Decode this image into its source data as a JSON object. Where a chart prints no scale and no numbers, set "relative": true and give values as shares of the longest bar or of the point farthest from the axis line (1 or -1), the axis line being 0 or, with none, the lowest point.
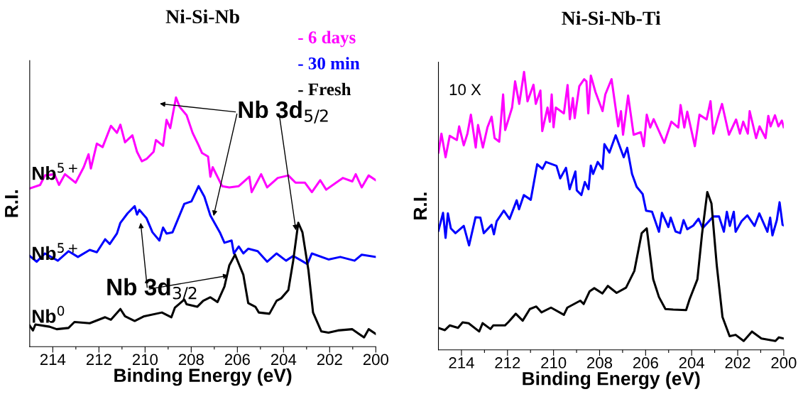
{
  "chart_data": [
    {
      "type": "line",
      "title": "Ni-Si-Nb",
      "xlabel": "Binding Energy (eV)",
      "ylabel": "R.I.",
      "relative": true,
      "xlim": [
        215,
        200
      ],
      "xticks": [
        214,
        {
          "value": 213,
          "label": null
        },
        212,
        {
          "value": 211,
          "label": null
        },
        210,
        {
          "value": 209,
          "label": null
        },
        208,
        {
          "value": 207,
          "label": null
        },
        206,
        {
          "value": 205,
          "label": null
        },
        204,
        {
          "value": 203,
          "label": null
        },
        202,
        {
          "value": 201,
          "label": null
        },
        200
      ],
      "tick_labels": "x",
      "legend": "top right",
      "grid": false,
      "marker": "none",
      "line_style": "solid",
      "annotations": [
        "Nb$^{5+}$",
        "Nb$^{5+}$",
        "Nb$^{0}$",
        "Nb 3d$_{5/2}$",
        "Nb 3d$_{3/2}$"
      ],
      "series": [
        {
          "name": "- 6 days",
          "color": "#ff00ff",
          "x": [
            215,
            214.55,
            214.34,
            213.93,
            213.73,
            213.47,
            213.01,
            212.66,
            212.45,
            212.35,
            212.09,
            211.84,
            211.48,
            211.22,
            211.07,
            210.87,
            210.55,
            210.35,
            210.14,
            209.94,
            209.63,
            209.53,
            209.22,
            209.07,
            208.91,
            208.66,
            208.5,
            208.2,
            207.94,
            207.69,
            207.53,
            207.27,
            207.17,
            207.07,
            206.66,
            206.35,
            205.94,
            205.48,
            205.38,
            204.97,
            204.71,
            204.25,
            203.79,
            203.48,
            203.07,
            202.77,
            202.41,
            202.15,
            201.43,
            201.02,
            200.87,
            200.61,
            200.31,
            200
          ],
          "values": [
            0.635,
            0.649,
            0.687,
            0.692,
            0.649,
            0.692,
            0.658,
            0.72,
            0.772,
            0.715,
            0.815,
            0.801,
            0.886,
            0.858,
            0.891,
            0.82,
            0.848,
            0.782,
            0.744,
            0.753,
            0.782,
            0.829,
            0.806,
            0.91,
            0.877,
            1.0,
            0.962,
            0.929,
            0.858,
            0.81,
            0.777,
            0.763,
            0.682,
            0.72,
            0.644,
            0.639,
            0.644,
            0.682,
            0.62,
            0.692,
            0.639,
            0.677,
            0.687,
            0.658,
            0.658,
            0.62,
            0.668,
            0.63,
            0.677,
            0.663,
            0.692,
            0.639,
            0.687,
            0.668
          ]
        },
        {
          "name": "- 30 min",
          "color": "#0000ff",
          "x": [
            215,
            214.7,
            214.34,
            213.78,
            213.32,
            212.91,
            212.4,
            212.09,
            211.73,
            211.53,
            211.22,
            211.07,
            210.76,
            210.45,
            210.35,
            210.25,
            209.94,
            209.68,
            209.38,
            209.22,
            209.07,
            208.81,
            208.3,
            207.99,
            207.68,
            207.43,
            207.17,
            206.76,
            206.56,
            206.25,
            206.15,
            205.94,
            205.74,
            205.53,
            205.12,
            204.71,
            204.3,
            203.89,
            203.58,
            203.22,
            202.97,
            202.77,
            202.05,
            201.54,
            200.92,
            200.61,
            200
          ],
          "values": [
            0.364,
            0.341,
            0.374,
            0.345,
            0.383,
            0.36,
            0.388,
            0.379,
            0.431,
            0.412,
            0.454,
            0.497,
            0.535,
            0.564,
            0.53,
            0.549,
            0.516,
            0.459,
            0.426,
            0.478,
            0.454,
            0.459,
            0.573,
            0.583,
            0.644,
            0.602,
            0.526,
            0.459,
            0.417,
            0.426,
            0.374,
            0.402,
            0.374,
            0.393,
            0.383,
            0.341,
            0.374,
            0.345,
            0.364,
            0.345,
            0.331,
            0.374,
            0.35,
            0.36,
            0.345,
            0.369,
            0.36
          ]
        },
        {
          "name": "- Fresh",
          "color": "#000000",
          "x": [
            215,
            214.86,
            214.75,
            214.14,
            213.83,
            213.32,
            213.06,
            212.4,
            211.73,
            211.48,
            211.07,
            210.87,
            210.45,
            210.04,
            209.27,
            208.86,
            208.71,
            208.3,
            208.2,
            207.74,
            207.48,
            207.17,
            206.86,
            206.56,
            206.35,
            206.1,
            205.74,
            205.53,
            205.22,
            205.07,
            204.61,
            204.3,
            204.1,
            203.79,
            203.58,
            203.36,
            203.18,
            202.92,
            202.72,
            202.36,
            202.05,
            201.64,
            201.02,
            200.51,
            200.31,
            200
          ],
          "values": [
            0.084,
            0.065,
            0.089,
            0.08,
            0.07,
            0.075,
            0.099,
            0.094,
            0.118,
            0.108,
            0.151,
            0.122,
            0.103,
            0.122,
            0.137,
            0.118,
            0.156,
            0.189,
            0.17,
            0.16,
            0.184,
            0.198,
            0.179,
            0.241,
            0.326,
            0.369,
            0.288,
            0.175,
            0.16,
            0.137,
            0.132,
            0.184,
            0.194,
            0.227,
            0.345,
            0.497,
            0.459,
            0.307,
            0.137,
            0.061,
            0.056,
            0.065,
            0.07,
            0.037,
            0.07,
            0.051
          ]
        }
      ]
    },
    {
      "type": "line",
      "title": "Ni-Si-Nb-Ti",
      "xlabel": "Binding Energy (eV)",
      "ylabel": "R.I.",
      "relative": true,
      "xlim": [
        215,
        200
      ],
      "xticks": [
        214,
        {
          "value": 213,
          "label": null
        },
        212,
        {
          "value": 211,
          "label": null
        },
        210,
        {
          "value": 209,
          "label": null
        },
        208,
        {
          "value": 207,
          "label": null
        },
        206,
        {
          "value": 205,
          "label": null
        },
        204,
        {
          "value": 203,
          "label": null
        },
        202,
        {
          "value": 201,
          "label": null
        },
        200
      ],
      "tick_labels": "x",
      "grid": false,
      "marker": "none",
      "line_style": "solid",
      "annotations": [
        "10 X"
      ],
      "series": [
        {
          "color": "#ff00ff",
          "x": [
            215,
            214.87,
            214.69,
            214.51,
            214.2,
            214.1,
            213.9,
            213.74,
            213.59,
            213.38,
            213.28,
            213.07,
            212.87,
            212.69,
            212.56,
            212.36,
            212.19,
            212.1,
            211.8,
            211.67,
            211.49,
            211.28,
            211.13,
            210.87,
            210.77,
            210.57,
            210.49,
            210.26,
            210.16,
            210.08,
            210.0,
            209.9,
            209.55,
            209.39,
            209.29,
            209.16,
            209.08,
            208.88,
            208.67,
            208.57,
            208.49,
            208.38,
            208.18,
            207.87,
            207.75,
            207.48,
            207.19,
            207.07,
            206.98,
            206.76,
            206.52,
            206.21,
            206.08,
            205.95,
            205.8,
            205.65,
            205.19,
            204.88,
            204.58,
            204.48,
            204.32,
            204.19,
            203.86,
            203.66,
            203.35,
            203.18,
            203.06,
            202.84,
            202.68,
            202.38,
            202.07,
            201.9,
            201.76,
            201.56,
            201.48,
            201.2,
            201.05,
            200.79,
            200.67,
            200.57,
            200.38,
            200.23,
            200.08,
            200
          ],
          "values": [
            0.71,
            0.778,
            0.693,
            0.77,
            0.755,
            0.804,
            0.736,
            0.778,
            0.846,
            0.728,
            0.809,
            0.728,
            0.801,
            0.839,
            0.762,
            0.749,
            0.919,
            0.791,
            0.872,
            0.966,
            0.885,
            1.0,
            0.894,
            0.954,
            0.885,
            0.933,
            0.787,
            0.872,
            0.821,
            0.919,
            0.801,
            0.872,
            0.851,
            0.953,
            0.83,
            0.906,
            0.834,
            0.949,
            0.974,
            0.966,
            0.851,
            0.987,
            0.928,
            0.859,
            0.919,
            0.974,
            0.804,
            0.859,
            0.774,
            0.915,
            0.774,
            0.783,
            0.733,
            0.846,
            0.8,
            0.83,
            0.745,
            0.821,
            0.8,
            0.881,
            0.8,
            0.857,
            0.733,
            0.846,
            0.829,
            0.895,
            0.778,
            0.842,
            0.885,
            0.774,
            0.829,
            0.778,
            0.821,
            0.778,
            0.859,
            0.762,
            0.804,
            0.762,
            0.842,
            0.804,
            0.844,
            0.804,
            0.825,
            0.801
          ]
        },
        {
          "color": "#0000ff",
          "x": [
            215,
            214.8,
            214.69,
            214.59,
            214.46,
            214.26,
            213.9,
            213.67,
            213.39,
            213.18,
            213.03,
            212.69,
            212.59,
            212.47,
            212.16,
            211.91,
            211.6,
            211.5,
            211.29,
            210.99,
            210.71,
            210.48,
            210.33,
            209.87,
            209.71,
            209.46,
            209.3,
            209.05,
            208.99,
            208.79,
            208.64,
            208.48,
            208.38,
            208.28,
            208.08,
            207.87,
            207.79,
            207.57,
            207.3,
            206.95,
            206.8,
            206.59,
            206.39,
            206.13,
            205.98,
            205.72,
            205.42,
            205.29,
            205.01,
            204.91,
            204.7,
            204.5,
            204.35,
            204.19,
            203.93,
            203.7,
            203.52,
            203.06,
            202.81,
            202.6,
            202.47,
            202.34,
            202.17,
            202.09,
            201.83,
            201.58,
            201.27,
            201.06,
            200.71,
            200.59,
            200.49,
            200.3,
            200.18,
            200.05,
            200
          ],
          "values": [
            0.429,
            0.493,
            0.403,
            0.491,
            0.437,
            0.42,
            0.446,
            0.376,
            0.477,
            0.476,
            0.42,
            0.45,
            0.416,
            0.463,
            0.501,
            0.471,
            0.538,
            0.506,
            0.557,
            0.54,
            0.668,
            0.651,
            0.676,
            0.662,
            0.617,
            0.655,
            0.578,
            0.642,
            0.574,
            0.557,
            0.604,
            0.578,
            0.663,
            0.633,
            0.676,
            0.651,
            0.74,
            0.71,
            0.772,
            0.693,
            0.727,
            0.633,
            0.587,
            0.561,
            0.501,
            0.497,
            0.425,
            0.493,
            0.442,
            0.476,
            0.426,
            0.42,
            0.467,
            0.434,
            0.447,
            0.472,
            0.438,
            0.48,
            0.48,
            0.425,
            0.497,
            0.446,
            0.497,
            0.425,
            0.463,
            0.484,
            0.446,
            0.491,
            0.425,
            0.476,
            0.412,
            0.467,
            0.531,
            0.45,
            0.448
          ]
        },
        {
          "color": "#000000",
          "x": [
            215,
            214.72,
            214.51,
            214.15,
            213.95,
            213.69,
            213.23,
            213.08,
            212.74,
            212.62,
            212.11,
            211.95,
            211.64,
            211.34,
            211.03,
            210.75,
            210.52,
            210.11,
            209.55,
            209.4,
            208.84,
            208.69,
            208.43,
            208.23,
            207.88,
            207.64,
            207.26,
            206.85,
            206.49,
            206.17,
            205.95,
            205.67,
            205.42,
            205.14,
            204.8,
            204.24,
            204.09,
            203.75,
            203.55,
            203.32,
            203.14,
            202.91,
            202.66,
            202.35,
            202.09,
            201.74,
            201.38,
            200.97,
            200.36,
            200.21,
            200
          ],
          "values": [
            0.079,
            0.071,
            0.088,
            0.079,
            0.099,
            0.096,
            0.066,
            0.096,
            0.075,
            0.088,
            0.088,
            0.101,
            0.13,
            0.105,
            0.147,
            0.156,
            0.135,
            0.152,
            0.126,
            0.152,
            0.177,
            0.165,
            0.211,
            0.222,
            0.203,
            0.23,
            0.205,
            0.224,
            0.284,
            0.42,
            0.437,
            0.254,
            0.19,
            0.147,
            0.145,
            0.143,
            0.182,
            0.254,
            0.416,
            0.568,
            0.527,
            0.305,
            0.118,
            0.049,
            0.054,
            0.032,
            0.066,
            0.041,
            0.032,
            0.045,
            0.041
          ]
        }
      ]
    }
  ]
}
